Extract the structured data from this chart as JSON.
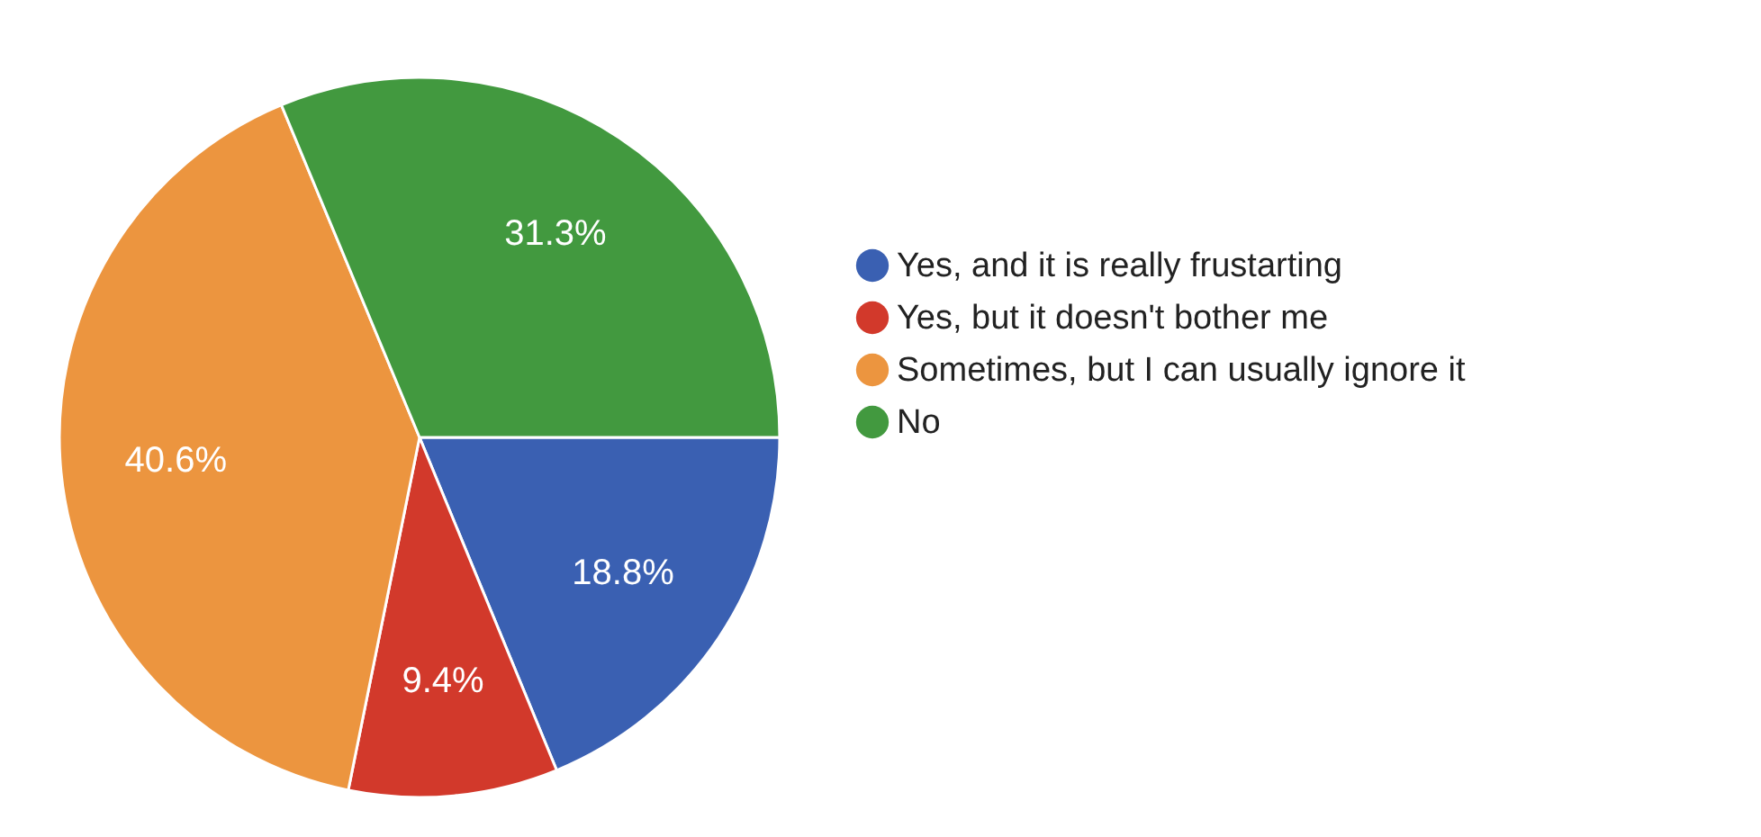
{
  "chart_data": {
    "type": "pie",
    "categories": [
      "Yes, and it is really frustarting",
      "Yes, but it doesn't bother me",
      "Sometimes, but I can usually ignore it",
      "No"
    ],
    "values": [
      18.8,
      9.4,
      40.6,
      31.3
    ],
    "colors": [
      "#3a60b2",
      "#d2392b",
      "#ec953f",
      "#42993f"
    ],
    "value_labels": [
      "18.8%",
      "9.4%",
      "40.6%",
      "31.3%"
    ],
    "legend": "right"
  }
}
